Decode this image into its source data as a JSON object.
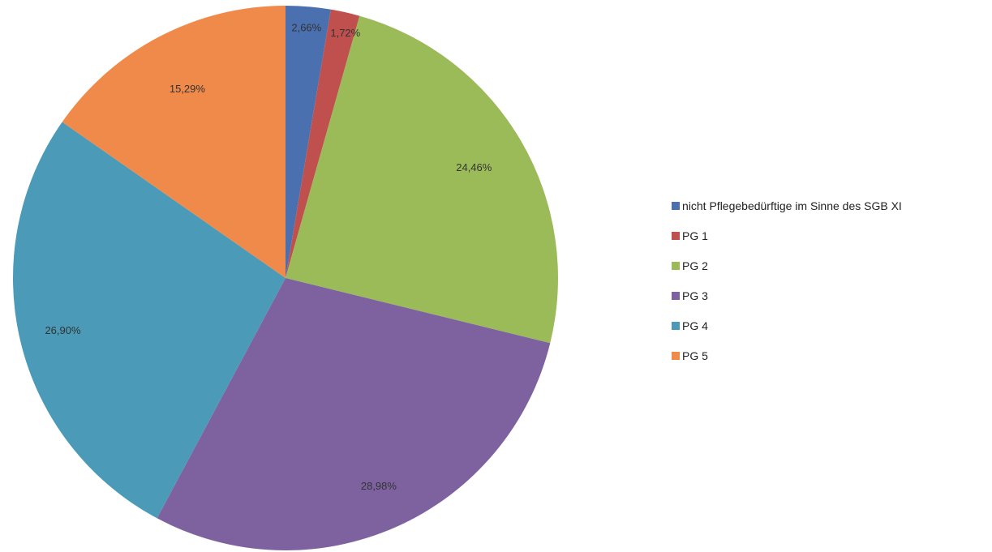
{
  "chart_data": {
    "type": "pie",
    "categories": [
      "nicht Pflegebedürftige im Sinne des SGB XI",
      "PG 1",
      "PG 2",
      "PG 3",
      "PG 4",
      "PG 5"
    ],
    "values": [
      2.66,
      1.72,
      24.46,
      28.98,
      26.9,
      15.29
    ],
    "data_labels": [
      "2,66%",
      "1,72%",
      "24,46%",
      "28,98%",
      "26,90%",
      "15,29%"
    ],
    "colors": [
      "#4a70b0",
      "#c0504d",
      "#9bbb59",
      "#7e62a0",
      "#4a9ab8",
      "#f08a4b"
    ],
    "title": "",
    "start_angle": "12 o'clock",
    "direction": "clockwise",
    "legend": {
      "position": "right"
    }
  }
}
